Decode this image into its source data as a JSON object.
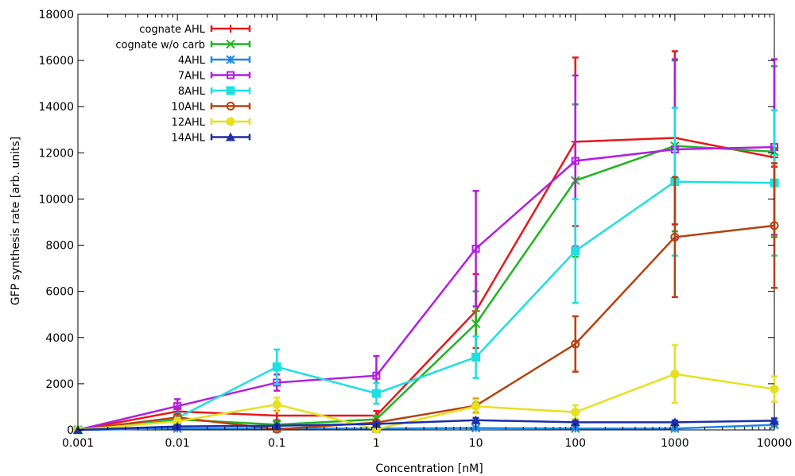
{
  "chart_data": {
    "type": "line",
    "xlabel": "Concentration [nM]",
    "ylabel": "GFP synthesis rate [arb. units]",
    "x_scale": "log",
    "xlim": [
      0.001,
      10000
    ],
    "ylim": [
      0,
      18000
    ],
    "x_ticks": [
      0.001,
      0.01,
      0.1,
      1,
      10,
      100,
      1000,
      10000
    ],
    "x_tick_labels": [
      "0.001",
      "0.01",
      "0.1",
      "1",
      "10",
      "100",
      "1000",
      "10000"
    ],
    "y_ticks": [
      0,
      2000,
      4000,
      6000,
      8000,
      10000,
      12000,
      14000,
      16000,
      18000
    ],
    "y_tick_labels": [
      "0",
      "2000",
      "4000",
      "6000",
      "8000",
      "10000",
      "12000",
      "14000",
      "16000",
      "18000"
    ],
    "grid": false,
    "legend_position": "top-left",
    "x": [
      0.001,
      0.01,
      0.1,
      1,
      10,
      100,
      1000,
      10000
    ],
    "series": [
      {
        "name": "cognate AHL",
        "color": "#e41a1c",
        "marker": "plus",
        "values": [
          0,
          800,
          620,
          620,
          5150,
          12480,
          12650,
          11800
        ],
        "errors": [
          0,
          150,
          200,
          200,
          1600,
          3650,
          3750,
          400
        ]
      },
      {
        "name": "cognate w/o carb",
        "color": "#1fb51f",
        "marker": "cross",
        "values": [
          0,
          450,
          230,
          460,
          4600,
          10800,
          12300,
          12050
        ],
        "errors": [
          0,
          120,
          150,
          150,
          1400,
          3300,
          3700,
          3700
        ]
      },
      {
        "name": "4AHL",
        "color": "#1e88e5",
        "marker": "star",
        "values": [
          0,
          60,
          60,
          60,
          80,
          60,
          60,
          220
        ],
        "errors": [
          0,
          30,
          30,
          30,
          30,
          30,
          30,
          60
        ]
      },
      {
        "name": "7AHL",
        "color": "#b21fe0",
        "marker": "square-open",
        "values": [
          0,
          1030,
          2050,
          2350,
          7850,
          11650,
          12150,
          12250
        ],
        "errors": [
          0,
          300,
          350,
          850,
          2500,
          3700,
          3900,
          3800
        ]
      },
      {
        "name": "8AHL",
        "color": "#1fdfe0",
        "marker": "square-filled",
        "values": [
          0,
          520,
          2730,
          1580,
          3150,
          7750,
          10750,
          10700
        ],
        "errors": [
          0,
          200,
          750,
          450,
          900,
          2250,
          3200,
          3150
        ]
      },
      {
        "name": "10AHL",
        "color": "#b6410f",
        "marker": "circle-open",
        "values": [
          0,
          540,
          30,
          320,
          1050,
          3720,
          8350,
          8850
        ],
        "errors": [
          0,
          150,
          50,
          100,
          300,
          1200,
          2600,
          2700
        ]
      },
      {
        "name": "12AHL",
        "color": "#e6e01f",
        "marker": "circle-filled",
        "values": [
          0,
          370,
          1100,
          30,
          1020,
          770,
          2420,
          1770
        ],
        "errors": [
          0,
          150,
          300,
          60,
          300,
          300,
          1250,
          550
        ]
      },
      {
        "name": "14AHL",
        "color": "#1e2fa8",
        "marker": "triangle-filled",
        "values": [
          0,
          150,
          180,
          260,
          420,
          330,
          330,
          400
        ],
        "errors": [
          0,
          60,
          60,
          60,
          100,
          80,
          80,
          100
        ]
      }
    ]
  }
}
